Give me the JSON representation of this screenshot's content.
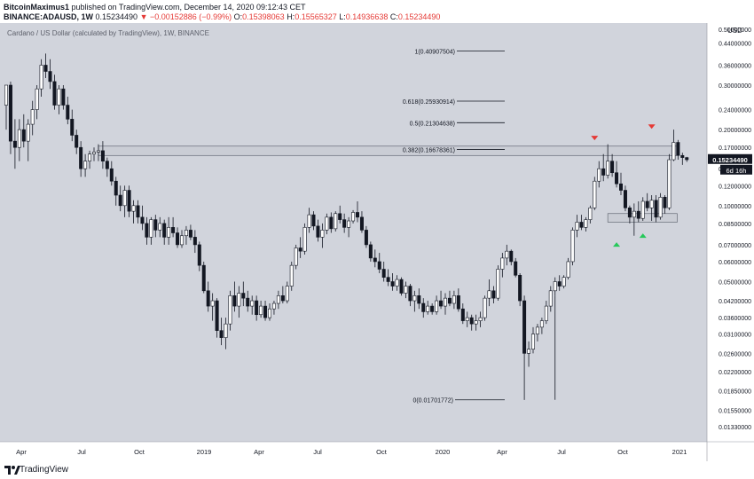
{
  "header": {
    "author": "BitcoinMaximus1",
    "published": "published on TradingView.com, December 14, 2020 09:12:43 CET",
    "symbol": "BINANCE:ADAUSD, 1W",
    "last": "0.15234490",
    "change": "▼ −0.00152886 (−0.99%)",
    "o_label": "O:",
    "o_value": "0.15398063",
    "h_label": "H:",
    "h_value": "0.15565327",
    "l_label": "L:",
    "l_value": "0.14936638",
    "c_label": "C:",
    "c_value": "0.15234490"
  },
  "footer": {
    "brand": "TradingView"
  },
  "colors": {
    "background": "#d1d4dc",
    "axis_background": "#ffffff",
    "candle": "#131722",
    "candle_up_fill": "#ffffff",
    "down_marker": "#e53935",
    "up_marker": "#26c85a",
    "price_label_bg": "#131722"
  },
  "chart_data": {
    "type": "candlestick",
    "title": "Cardano / US Dollar (calculated by TradingView), 1W, BINANCE",
    "y_scale": "log",
    "currency": "USD",
    "y_ticks": [
      "0.50000000",
      "0.44000000",
      "0.36000000",
      "0.30000000",
      "0.24000000",
      "0.20000000",
      "0.17000000",
      "0.14000000",
      "0.12000000",
      "0.10000000",
      "0.08500000",
      "0.07000000",
      "0.06000000",
      "0.05000000",
      "0.04200000",
      "0.03600000",
      "0.03100000",
      "0.02600000",
      "0.02200000",
      "0.01850000",
      "0.01550000",
      "0.01330000"
    ],
    "y_tick_values": [
      0.5,
      0.44,
      0.36,
      0.3,
      0.24,
      0.2,
      0.17,
      0.14,
      0.12,
      0.1,
      0.085,
      0.07,
      0.06,
      0.05,
      0.042,
      0.036,
      0.031,
      0.026,
      0.022,
      0.0185,
      0.0155,
      0.0133
    ],
    "x_ticks": [
      "Apr",
      "Jul",
      "Oct",
      "2019",
      "Apr",
      "Jul",
      "Oct",
      "2020",
      "Apr",
      "Jul",
      "Oct",
      "2021"
    ],
    "last_price_label": "0.15234490",
    "countdown_label": "6d 16h",
    "fib_levels": [
      {
        "label": "1(0.40907504)",
        "value": 0.40907504
      },
      {
        "label": "0.618(0.25930914)",
        "value": 0.25930914
      },
      {
        "label": "0.5(0.21304638)",
        "value": 0.21304638
      },
      {
        "label": "0.382(0.16678361)",
        "value": 0.16678361
      },
      {
        "label": "0(0.01701772)",
        "value": 0.01701772
      }
    ],
    "zones": [
      {
        "name": "resistance",
        "low": 0.158,
        "high": 0.172,
        "from_week": 21,
        "to_week": 152
      },
      {
        "name": "support",
        "low": 0.086,
        "high": 0.093,
        "from_week": 137,
        "to_week": 152
      }
    ],
    "markers": [
      {
        "type": "down",
        "week": 134,
        "value": 0.183
      },
      {
        "type": "down",
        "week": 147,
        "value": 0.203
      },
      {
        "type": "up",
        "week": 139,
        "value": 0.071
      },
      {
        "type": "up",
        "week": 145,
        "value": 0.077
      }
    ],
    "candles": [
      {
        "o": 0.25,
        "h": 0.3,
        "l": 0.2,
        "c": 0.3
      },
      {
        "o": 0.3,
        "h": 0.31,
        "l": 0.16,
        "c": 0.18
      },
      {
        "o": 0.18,
        "h": 0.22,
        "l": 0.14,
        "c": 0.17
      },
      {
        "o": 0.17,
        "h": 0.22,
        "l": 0.15,
        "c": 0.2
      },
      {
        "o": 0.2,
        "h": 0.23,
        "l": 0.17,
        "c": 0.18
      },
      {
        "o": 0.18,
        "h": 0.22,
        "l": 0.15,
        "c": 0.21
      },
      {
        "o": 0.21,
        "h": 0.26,
        "l": 0.19,
        "c": 0.24
      },
      {
        "o": 0.24,
        "h": 0.3,
        "l": 0.22,
        "c": 0.29
      },
      {
        "o": 0.29,
        "h": 0.38,
        "l": 0.27,
        "c": 0.36
      },
      {
        "o": 0.36,
        "h": 0.4,
        "l": 0.32,
        "c": 0.34
      },
      {
        "o": 0.34,
        "h": 0.38,
        "l": 0.29,
        "c": 0.31
      },
      {
        "o": 0.31,
        "h": 0.33,
        "l": 0.24,
        "c": 0.25
      },
      {
        "o": 0.25,
        "h": 0.3,
        "l": 0.23,
        "c": 0.29
      },
      {
        "o": 0.29,
        "h": 0.3,
        "l": 0.24,
        "c": 0.25
      },
      {
        "o": 0.25,
        "h": 0.27,
        "l": 0.21,
        "c": 0.22
      },
      {
        "o": 0.22,
        "h": 0.24,
        "l": 0.18,
        "c": 0.19
      },
      {
        "o": 0.19,
        "h": 0.2,
        "l": 0.16,
        "c": 0.17
      },
      {
        "o": 0.17,
        "h": 0.18,
        "l": 0.13,
        "c": 0.14
      },
      {
        "o": 0.14,
        "h": 0.16,
        "l": 0.13,
        "c": 0.15
      },
      {
        "o": 0.15,
        "h": 0.165,
        "l": 0.14,
        "c": 0.16
      },
      {
        "o": 0.16,
        "h": 0.17,
        "l": 0.15,
        "c": 0.163
      },
      {
        "o": 0.163,
        "h": 0.175,
        "l": 0.15,
        "c": 0.165
      },
      {
        "o": 0.165,
        "h": 0.18,
        "l": 0.14,
        "c": 0.15
      },
      {
        "o": 0.15,
        "h": 0.155,
        "l": 0.13,
        "c": 0.14
      },
      {
        "o": 0.14,
        "h": 0.15,
        "l": 0.12,
        "c": 0.125
      },
      {
        "o": 0.125,
        "h": 0.13,
        "l": 0.1,
        "c": 0.11
      },
      {
        "o": 0.11,
        "h": 0.12,
        "l": 0.095,
        "c": 0.1
      },
      {
        "o": 0.1,
        "h": 0.12,
        "l": 0.09,
        "c": 0.115
      },
      {
        "o": 0.115,
        "h": 0.12,
        "l": 0.09,
        "c": 0.095
      },
      {
        "o": 0.095,
        "h": 0.105,
        "l": 0.085,
        "c": 0.1
      },
      {
        "o": 0.1,
        "h": 0.105,
        "l": 0.085,
        "c": 0.09
      },
      {
        "o": 0.09,
        "h": 0.1,
        "l": 0.08,
        "c": 0.085
      },
      {
        "o": 0.085,
        "h": 0.09,
        "l": 0.07,
        "c": 0.075
      },
      {
        "o": 0.075,
        "h": 0.09,
        "l": 0.07,
        "c": 0.088
      },
      {
        "o": 0.088,
        "h": 0.092,
        "l": 0.075,
        "c": 0.08
      },
      {
        "o": 0.08,
        "h": 0.09,
        "l": 0.075,
        "c": 0.085
      },
      {
        "o": 0.085,
        "h": 0.088,
        "l": 0.07,
        "c": 0.075
      },
      {
        "o": 0.075,
        "h": 0.09,
        "l": 0.07,
        "c": 0.082
      },
      {
        "o": 0.082,
        "h": 0.09,
        "l": 0.075,
        "c": 0.078
      },
      {
        "o": 0.078,
        "h": 0.082,
        "l": 0.068,
        "c": 0.07
      },
      {
        "o": 0.07,
        "h": 0.08,
        "l": 0.068,
        "c": 0.076
      },
      {
        "o": 0.076,
        "h": 0.083,
        "l": 0.07,
        "c": 0.08
      },
      {
        "o": 0.08,
        "h": 0.084,
        "l": 0.073,
        "c": 0.075
      },
      {
        "o": 0.075,
        "h": 0.08,
        "l": 0.065,
        "c": 0.07
      },
      {
        "o": 0.07,
        "h": 0.072,
        "l": 0.055,
        "c": 0.058
      },
      {
        "o": 0.058,
        "h": 0.06,
        "l": 0.045,
        "c": 0.046
      },
      {
        "o": 0.046,
        "h": 0.05,
        "l": 0.038,
        "c": 0.04
      },
      {
        "o": 0.04,
        "h": 0.045,
        "l": 0.035,
        "c": 0.042
      },
      {
        "o": 0.042,
        "h": 0.043,
        "l": 0.03,
        "c": 0.032
      },
      {
        "o": 0.032,
        "h": 0.036,
        "l": 0.028,
        "c": 0.03
      },
      {
        "o": 0.03,
        "h": 0.036,
        "l": 0.027,
        "c": 0.034
      },
      {
        "o": 0.034,
        "h": 0.046,
        "l": 0.032,
        "c": 0.044
      },
      {
        "o": 0.044,
        "h": 0.05,
        "l": 0.038,
        "c": 0.04
      },
      {
        "o": 0.04,
        "h": 0.048,
        "l": 0.036,
        "c": 0.045
      },
      {
        "o": 0.045,
        "h": 0.05,
        "l": 0.04,
        "c": 0.043
      },
      {
        "o": 0.043,
        "h": 0.046,
        "l": 0.038,
        "c": 0.04
      },
      {
        "o": 0.04,
        "h": 0.044,
        "l": 0.037,
        "c": 0.042
      },
      {
        "o": 0.042,
        "h": 0.044,
        "l": 0.035,
        "c": 0.037
      },
      {
        "o": 0.037,
        "h": 0.042,
        "l": 0.036,
        "c": 0.04
      },
      {
        "o": 0.04,
        "h": 0.042,
        "l": 0.035,
        "c": 0.036
      },
      {
        "o": 0.036,
        "h": 0.041,
        "l": 0.035,
        "c": 0.039
      },
      {
        "o": 0.039,
        "h": 0.042,
        "l": 0.037,
        "c": 0.041
      },
      {
        "o": 0.041,
        "h": 0.046,
        "l": 0.039,
        "c": 0.044
      },
      {
        "o": 0.044,
        "h": 0.048,
        "l": 0.041,
        "c": 0.042
      },
      {
        "o": 0.042,
        "h": 0.05,
        "l": 0.041,
        "c": 0.048
      },
      {
        "o": 0.048,
        "h": 0.06,
        "l": 0.046,
        "c": 0.058
      },
      {
        "o": 0.058,
        "h": 0.07,
        "l": 0.056,
        "c": 0.068
      },
      {
        "o": 0.068,
        "h": 0.075,
        "l": 0.062,
        "c": 0.066
      },
      {
        "o": 0.066,
        "h": 0.085,
        "l": 0.064,
        "c": 0.082
      },
      {
        "o": 0.082,
        "h": 0.098,
        "l": 0.078,
        "c": 0.092
      },
      {
        "o": 0.092,
        "h": 0.095,
        "l": 0.08,
        "c": 0.083
      },
      {
        "o": 0.083,
        "h": 0.088,
        "l": 0.072,
        "c": 0.075
      },
      {
        "o": 0.075,
        "h": 0.085,
        "l": 0.068,
        "c": 0.08
      },
      {
        "o": 0.08,
        "h": 0.093,
        "l": 0.077,
        "c": 0.09
      },
      {
        "o": 0.09,
        "h": 0.094,
        "l": 0.078,
        "c": 0.081
      },
      {
        "o": 0.081,
        "h": 0.095,
        "l": 0.079,
        "c": 0.093
      },
      {
        "o": 0.093,
        "h": 0.1,
        "l": 0.085,
        "c": 0.088
      },
      {
        "o": 0.088,
        "h": 0.093,
        "l": 0.078,
        "c": 0.082
      },
      {
        "o": 0.082,
        "h": 0.09,
        "l": 0.075,
        "c": 0.087
      },
      {
        "o": 0.087,
        "h": 0.096,
        "l": 0.085,
        "c": 0.094
      },
      {
        "o": 0.094,
        "h": 0.104,
        "l": 0.086,
        "c": 0.09
      },
      {
        "o": 0.09,
        "h": 0.095,
        "l": 0.078,
        "c": 0.08
      },
      {
        "o": 0.08,
        "h": 0.083,
        "l": 0.068,
        "c": 0.07
      },
      {
        "o": 0.07,
        "h": 0.072,
        "l": 0.06,
        "c": 0.062
      },
      {
        "o": 0.062,
        "h": 0.067,
        "l": 0.057,
        "c": 0.06
      },
      {
        "o": 0.06,
        "h": 0.065,
        "l": 0.054,
        "c": 0.056
      },
      {
        "o": 0.056,
        "h": 0.06,
        "l": 0.05,
        "c": 0.052
      },
      {
        "o": 0.052,
        "h": 0.056,
        "l": 0.048,
        "c": 0.05
      },
      {
        "o": 0.05,
        "h": 0.054,
        "l": 0.046,
        "c": 0.048
      },
      {
        "o": 0.048,
        "h": 0.053,
        "l": 0.046,
        "c": 0.051
      },
      {
        "o": 0.051,
        "h": 0.052,
        "l": 0.044,
        "c": 0.045
      },
      {
        "o": 0.045,
        "h": 0.05,
        "l": 0.043,
        "c": 0.048
      },
      {
        "o": 0.048,
        "h": 0.049,
        "l": 0.04,
        "c": 0.042
      },
      {
        "o": 0.042,
        "h": 0.046,
        "l": 0.038,
        "c": 0.044
      },
      {
        "o": 0.044,
        "h": 0.047,
        "l": 0.039,
        "c": 0.041
      },
      {
        "o": 0.041,
        "h": 0.043,
        "l": 0.036,
        "c": 0.038
      },
      {
        "o": 0.038,
        "h": 0.042,
        "l": 0.037,
        "c": 0.04
      },
      {
        "o": 0.04,
        "h": 0.041,
        "l": 0.037,
        "c": 0.038
      },
      {
        "o": 0.038,
        "h": 0.044,
        "l": 0.037,
        "c": 0.042
      },
      {
        "o": 0.042,
        "h": 0.046,
        "l": 0.039,
        "c": 0.04
      },
      {
        "o": 0.04,
        "h": 0.045,
        "l": 0.037,
        "c": 0.043
      },
      {
        "o": 0.043,
        "h": 0.046,
        "l": 0.04,
        "c": 0.041
      },
      {
        "o": 0.041,
        "h": 0.046,
        "l": 0.039,
        "c": 0.044
      },
      {
        "o": 0.044,
        "h": 0.047,
        "l": 0.038,
        "c": 0.039
      },
      {
        "o": 0.039,
        "h": 0.041,
        "l": 0.034,
        "c": 0.035
      },
      {
        "o": 0.035,
        "h": 0.038,
        "l": 0.033,
        "c": 0.036
      },
      {
        "o": 0.036,
        "h": 0.037,
        "l": 0.032,
        "c": 0.034
      },
      {
        "o": 0.034,
        "h": 0.037,
        "l": 0.032,
        "c": 0.035
      },
      {
        "o": 0.035,
        "h": 0.038,
        "l": 0.033,
        "c": 0.036
      },
      {
        "o": 0.036,
        "h": 0.044,
        "l": 0.035,
        "c": 0.043
      },
      {
        "o": 0.043,
        "h": 0.051,
        "l": 0.04,
        "c": 0.046
      },
      {
        "o": 0.046,
        "h": 0.048,
        "l": 0.041,
        "c": 0.043
      },
      {
        "o": 0.043,
        "h": 0.058,
        "l": 0.042,
        "c": 0.056
      },
      {
        "o": 0.056,
        "h": 0.065,
        "l": 0.052,
        "c": 0.062
      },
      {
        "o": 0.062,
        "h": 0.07,
        "l": 0.058,
        "c": 0.066
      },
      {
        "o": 0.066,
        "h": 0.067,
        "l": 0.058,
        "c": 0.06
      },
      {
        "o": 0.06,
        "h": 0.062,
        "l": 0.052,
        "c": 0.053
      },
      {
        "o": 0.053,
        "h": 0.054,
        "l": 0.04,
        "c": 0.042
      },
      {
        "o": 0.042,
        "h": 0.044,
        "l": 0.017,
        "c": 0.026
      },
      {
        "o": 0.026,
        "h": 0.029,
        "l": 0.023,
        "c": 0.027
      },
      {
        "o": 0.027,
        "h": 0.033,
        "l": 0.026,
        "c": 0.031
      },
      {
        "o": 0.031,
        "h": 0.034,
        "l": 0.029,
        "c": 0.033
      },
      {
        "o": 0.033,
        "h": 0.036,
        "l": 0.031,
        "c": 0.035
      },
      {
        "o": 0.035,
        "h": 0.042,
        "l": 0.034,
        "c": 0.04
      },
      {
        "o": 0.04,
        "h": 0.048,
        "l": 0.038,
        "c": 0.046
      },
      {
        "o": 0.046,
        "h": 0.052,
        "l": 0.044,
        "c": 0.05
      },
      {
        "o": 0.05,
        "h": 0.053,
        "l": 0.046,
        "c": 0.048
      },
      {
        "o": 0.048,
        "h": 0.053,
        "l": 0.047,
        "c": 0.052
      },
      {
        "o": 0.052,
        "h": 0.062,
        "l": 0.051,
        "c": 0.06
      },
      {
        "o": 0.06,
        "h": 0.082,
        "l": 0.058,
        "c": 0.08
      },
      {
        "o": 0.08,
        "h": 0.092,
        "l": 0.075,
        "c": 0.086
      },
      {
        "o": 0.086,
        "h": 0.092,
        "l": 0.08,
        "c": 0.082
      },
      {
        "o": 0.082,
        "h": 0.09,
        "l": 0.079,
        "c": 0.088
      },
      {
        "o": 0.088,
        "h": 0.1,
        "l": 0.085,
        "c": 0.098
      },
      {
        "o": 0.098,
        "h": 0.13,
        "l": 0.096,
        "c": 0.125
      },
      {
        "o": 0.125,
        "h": 0.15,
        "l": 0.118,
        "c": 0.14
      },
      {
        "o": 0.14,
        "h": 0.16,
        "l": 0.125,
        "c": 0.132
      },
      {
        "o": 0.132,
        "h": 0.175,
        "l": 0.128,
        "c": 0.15
      },
      {
        "o": 0.15,
        "h": 0.16,
        "l": 0.13,
        "c": 0.135
      },
      {
        "o": 0.135,
        "h": 0.15,
        "l": 0.118,
        "c": 0.122
      },
      {
        "o": 0.122,
        "h": 0.135,
        "l": 0.11,
        "c": 0.115
      },
      {
        "o": 0.115,
        "h": 0.12,
        "l": 0.095,
        "c": 0.098
      },
      {
        "o": 0.098,
        "h": 0.1,
        "l": 0.085,
        "c": 0.09
      },
      {
        "o": 0.09,
        "h": 0.102,
        "l": 0.076,
        "c": 0.095
      },
      {
        "o": 0.095,
        "h": 0.104,
        "l": 0.086,
        "c": 0.089
      },
      {
        "o": 0.089,
        "h": 0.108,
        "l": 0.087,
        "c": 0.104
      },
      {
        "o": 0.104,
        "h": 0.112,
        "l": 0.095,
        "c": 0.098
      },
      {
        "o": 0.098,
        "h": 0.11,
        "l": 0.087,
        "c": 0.105
      },
      {
        "o": 0.105,
        "h": 0.11,
        "l": 0.086,
        "c": 0.09
      },
      {
        "o": 0.09,
        "h": 0.112,
        "l": 0.088,
        "c": 0.108
      },
      {
        "o": 0.108,
        "h": 0.11,
        "l": 0.093,
        "c": 0.098
      },
      {
        "o": 0.098,
        "h": 0.16,
        "l": 0.096,
        "c": 0.152
      },
      {
        "o": 0.152,
        "h": 0.2,
        "l": 0.15,
        "c": 0.178
      },
      {
        "o": 0.178,
        "h": 0.182,
        "l": 0.152,
        "c": 0.158
      },
      {
        "o": 0.158,
        "h": 0.162,
        "l": 0.145,
        "c": 0.155
      },
      {
        "o": 0.155,
        "h": 0.156,
        "l": 0.149,
        "c": 0.152
      }
    ]
  }
}
